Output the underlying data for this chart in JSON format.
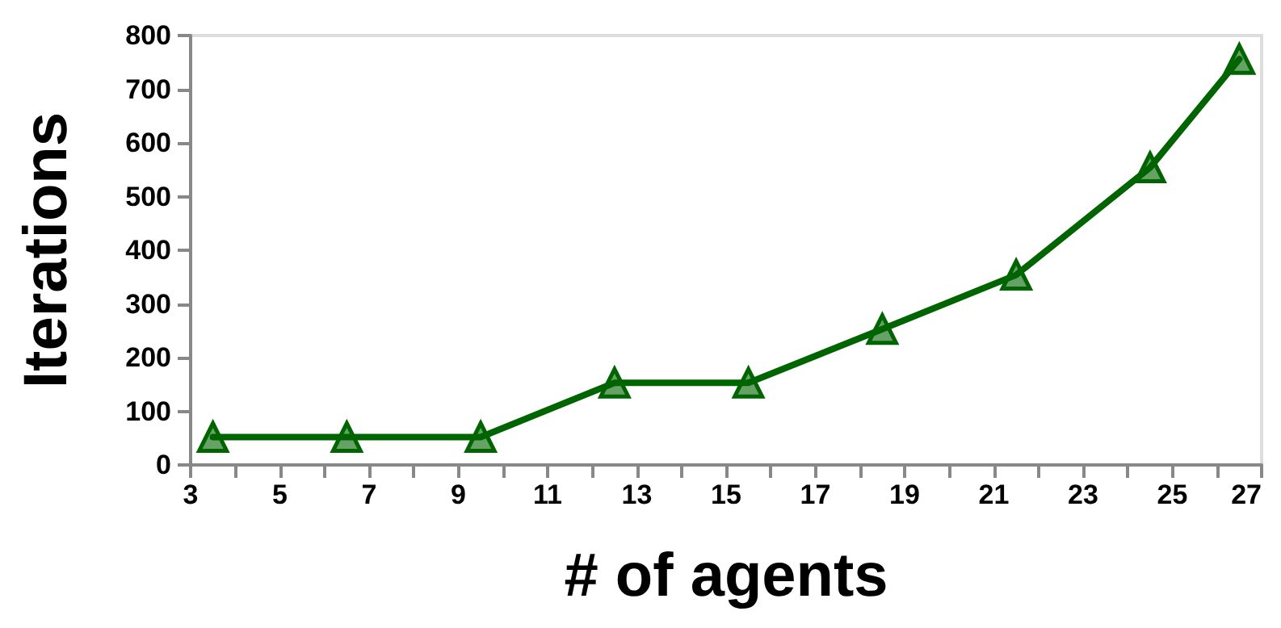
{
  "chart_data": {
    "type": "line",
    "xlabel": "# of agents",
    "ylabel": "Iterations",
    "x": [
      3.5,
      6.5,
      9.5,
      12.5,
      15.5,
      18.5,
      21.5,
      24.5,
      26.5
    ],
    "series": [
      {
        "color": "#006400",
        "values": [
          52,
          52,
          52,
          153,
          153,
          253,
          354,
          554,
          756
        ]
      }
    ],
    "xlim": [
      3,
      27
    ],
    "xticks": [
      3,
      5,
      7,
      9,
      11,
      13,
      15,
      17,
      19,
      21,
      23,
      25,
      27
    ],
    "ylim": [
      0,
      800
    ],
    "yticks": [
      0,
      100,
      200,
      300,
      400,
      500,
      600,
      700,
      800
    ],
    "grid": false,
    "marker": "triangle",
    "line_style": "solid"
  }
}
